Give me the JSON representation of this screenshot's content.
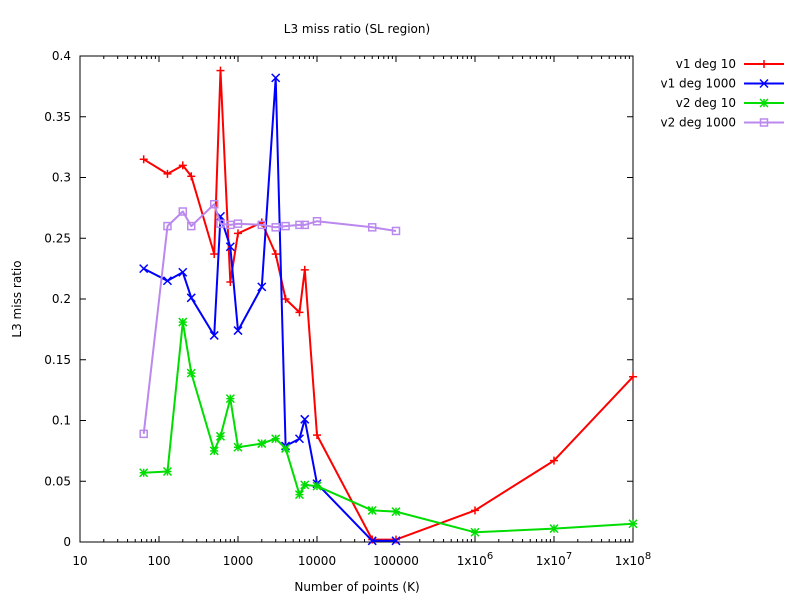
{
  "chart_data": {
    "type": "line",
    "title": "L3 miss ratio (SL region)",
    "xlabel": "Number of points (K)",
    "ylabel": "L3 miss ratio",
    "xscale": "log",
    "xlim": [
      10,
      100000000
    ],
    "ylim": [
      0,
      0.4
    ],
    "x_ticks": [
      {
        "value": 10,
        "label": "10"
      },
      {
        "value": 100,
        "label": "100"
      },
      {
        "value": 1000,
        "label": "1000"
      },
      {
        "value": 10000,
        "label": "10000"
      },
      {
        "value": 100000,
        "label": "100000"
      },
      {
        "value": 1000000,
        "label": "1x10^6"
      },
      {
        "value": 10000000,
        "label": "1x10^7"
      },
      {
        "value": 100000000,
        "label": "1x10^8"
      }
    ],
    "y_ticks": [
      {
        "value": 0,
        "label": "0"
      },
      {
        "value": 0.05,
        "label": "0.05"
      },
      {
        "value": 0.1,
        "label": "0.1"
      },
      {
        "value": 0.15,
        "label": "0.15"
      },
      {
        "value": 0.2,
        "label": "0.2"
      },
      {
        "value": 0.25,
        "label": "0.25"
      },
      {
        "value": 0.3,
        "label": "0.3"
      },
      {
        "value": 0.35,
        "label": "0.35"
      },
      {
        "value": 0.4,
        "label": "0.4"
      }
    ],
    "grid": false,
    "legend_position": "outside-top-right",
    "series": [
      {
        "name": "v1 deg 10",
        "color": "#ff0000",
        "marker": "plus",
        "x": [
          64,
          128,
          200,
          256,
          500,
          600,
          800,
          1000,
          2000,
          3000,
          4000,
          6000,
          7000,
          10000,
          50000,
          100000,
          1000000,
          10000000,
          100000000
        ],
        "y": [
          0.315,
          0.303,
          0.31,
          0.301,
          0.237,
          0.388,
          0.214,
          0.254,
          0.263,
          0.237,
          0.2,
          0.189,
          0.224,
          0.088,
          0.002,
          0.002,
          0.026,
          0.067,
          0.136
        ]
      },
      {
        "name": "v1 deg 1000",
        "color": "#0000ff",
        "marker": "cross",
        "x": [
          64,
          128,
          200,
          256,
          500,
          600,
          800,
          1000,
          2000,
          3000,
          4000,
          6000,
          7000,
          10000,
          50000,
          100000
        ],
        "y": [
          0.225,
          0.215,
          0.222,
          0.201,
          0.17,
          0.268,
          0.243,
          0.174,
          0.21,
          0.382,
          0.079,
          0.085,
          0.101,
          0.048,
          0.001,
          0.001
        ]
      },
      {
        "name": "v2 deg 10",
        "color": "#00dd00",
        "marker": "asterisk",
        "x": [
          64,
          128,
          200,
          256,
          500,
          600,
          800,
          1000,
          2000,
          3000,
          4000,
          6000,
          7000,
          10000,
          50000,
          100000,
          1000000,
          10000000,
          100000000
        ],
        "y": [
          0.057,
          0.058,
          0.181,
          0.139,
          0.075,
          0.087,
          0.118,
          0.078,
          0.081,
          0.085,
          0.077,
          0.039,
          0.047,
          0.046,
          0.026,
          0.025,
          0.008,
          0.011,
          0.015
        ]
      },
      {
        "name": "v2 deg 1000",
        "color": "#bb88ee",
        "marker": "square",
        "x": [
          64,
          128,
          200,
          256,
          500,
          600,
          800,
          1000,
          2000,
          3000,
          4000,
          6000,
          7000,
          10000,
          50000,
          100000
        ],
        "y": [
          0.089,
          0.26,
          0.272,
          0.26,
          0.278,
          0.262,
          0.261,
          0.262,
          0.261,
          0.259,
          0.26,
          0.261,
          0.261,
          0.264,
          0.259,
          0.256
        ]
      }
    ]
  }
}
